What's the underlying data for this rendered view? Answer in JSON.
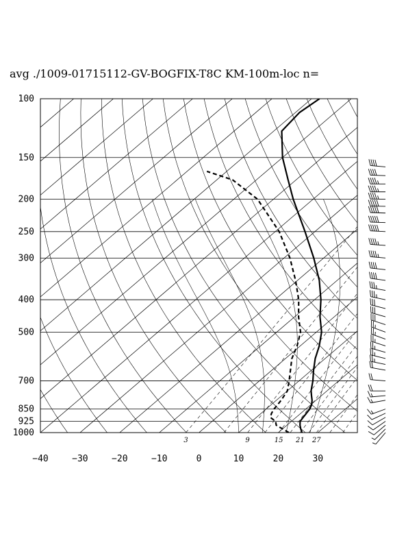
{
  "title": "avg ./1009-01715112-GV-BOGFIX-T8C KM-100m-loc n=",
  "chart_data": {
    "type": "skew-t log-p",
    "pressure_levels": [
      100,
      150,
      200,
      250,
      300,
      400,
      500,
      700,
      850,
      925,
      1000
    ],
    "pressure_labels": [
      "100",
      "150",
      "200",
      "250",
      "300",
      "400",
      "500",
      "700",
      "850",
      "925",
      "1000"
    ],
    "temperature_ticks": [
      -40,
      -30,
      -20,
      -10,
      0,
      10,
      20,
      30
    ],
    "temperature_labels": [
      "−40",
      "−30",
      "−20",
      "−10",
      "0",
      "10",
      "20",
      "30"
    ],
    "ylim": [
      1000,
      100
    ],
    "xlim_at_1000hPa": [
      -40,
      40
    ],
    "mixing_ratio_labels": [
      "3",
      "9",
      "15",
      "21",
      "27"
    ],
    "series": [
      {
        "style": "solid",
        "points": [
          {
            "p": 1000,
            "t": 26.0
          },
          {
            "p": 975,
            "t": 24.6
          },
          {
            "p": 950,
            "t": 23.3
          },
          {
            "p": 925,
            "t": 22.2
          },
          {
            "p": 900,
            "t": 21.8
          },
          {
            "p": 875,
            "t": 21.4
          },
          {
            "p": 850,
            "t": 21.0
          },
          {
            "p": 825,
            "t": 20.2
          },
          {
            "p": 800,
            "t": 19.0
          },
          {
            "p": 775,
            "t": 17.5
          },
          {
            "p": 750,
            "t": 16.0
          },
          {
            "p": 700,
            "t": 13.5
          },
          {
            "p": 650,
            "t": 10.5
          },
          {
            "p": 600,
            "t": 7.5
          },
          {
            "p": 550,
            "t": 4.8
          },
          {
            "p": 500,
            "t": 1.3
          },
          {
            "p": 450,
            "t": -3.6
          },
          {
            "p": 400,
            "t": -8.4
          },
          {
            "p": 350,
            "t": -14.5
          },
          {
            "p": 300,
            "t": -22.5
          },
          {
            "p": 250,
            "t": -32.5
          },
          {
            "p": 200,
            "t": -45.0
          },
          {
            "p": 175,
            "t": -52.0
          },
          {
            "p": 150,
            "t": -60.0
          },
          {
            "p": 125,
            "t": -68.0
          },
          {
            "p": 110,
            "t": -69.0
          },
          {
            "p": 100,
            "t": -68.0
          }
        ]
      },
      {
        "style": "dashed",
        "points": [
          {
            "p": 1000,
            "t": 22.7
          },
          {
            "p": 975,
            "t": 20.0
          },
          {
            "p": 950,
            "t": 17.3
          },
          {
            "p": 925,
            "t": 16.0
          },
          {
            "p": 900,
            "t": 13.5
          },
          {
            "p": 875,
            "t": 12.6
          },
          {
            "p": 850,
            "t": 12.0
          },
          {
            "p": 800,
            "t": 11.2
          },
          {
            "p": 750,
            "t": 10.0
          },
          {
            "p": 700,
            "t": 7.5
          },
          {
            "p": 600,
            "t": 1.6
          },
          {
            "p": 550,
            "t": -0.8
          },
          {
            "p": 500,
            "t": -4.0
          },
          {
            "p": 450,
            "t": -9.0
          },
          {
            "p": 400,
            "t": -14.0
          },
          {
            "p": 350,
            "t": -20.5
          },
          {
            "p": 300,
            "t": -28.5
          },
          {
            "p": 250,
            "t": -39.0
          },
          {
            "p": 200,
            "t": -54.0
          },
          {
            "p": 175,
            "t": -66.0
          },
          {
            "p": 165,
            "t": -75.0
          }
        ]
      }
    ],
    "isotherm_interval": 10,
    "grid": true,
    "wind_barbs": {
      "column": "right",
      "levels": [
        1000,
        975,
        950,
        925,
        900,
        875,
        850,
        800,
        775,
        750,
        700,
        650,
        625,
        600,
        575,
        550,
        525,
        500,
        475,
        450,
        425,
        400,
        375,
        350,
        325,
        300,
        275,
        250,
        235,
        220,
        210,
        200,
        190,
        180,
        170,
        160
      ],
      "direction_deg": [
        220,
        225,
        230,
        235,
        240,
        245,
        250,
        260,
        265,
        270,
        275,
        280,
        282,
        284,
        286,
        288,
        290,
        290,
        288,
        286,
        284,
        282,
        280,
        278,
        276,
        275,
        274,
        273,
        272,
        272,
        271,
        271,
        270,
        270,
        272,
        275
      ],
      "speed_kt": [
        5,
        5,
        10,
        10,
        10,
        10,
        15,
        15,
        15,
        20,
        20,
        20,
        25,
        25,
        25,
        25,
        25,
        25,
        30,
        30,
        30,
        35,
        35,
        40,
        40,
        45,
        45,
        50,
        50,
        50,
        50,
        45,
        45,
        45,
        40,
        40
      ]
    }
  }
}
